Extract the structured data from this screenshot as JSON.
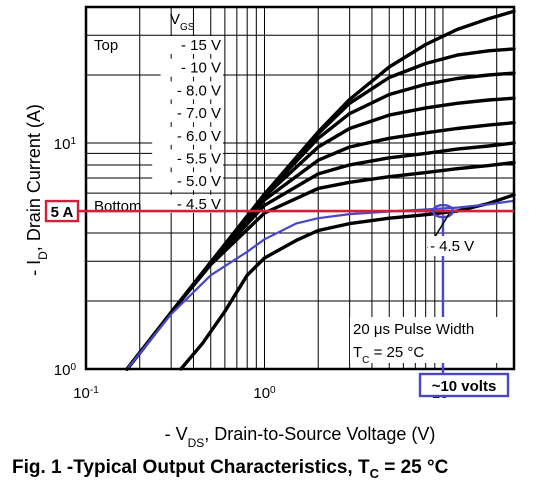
{
  "chart_data": {
    "type": "line",
    "title": "",
    "xlabel": "- V",
    "xlabel_sub": "DS",
    "xlabel_rest": ", Drain-to-Source Voltage (V)",
    "ylabel": "- I",
    "ylabel_sub": "D",
    "ylabel_rest": ", Drain Current (A)",
    "x_scale": "log",
    "y_scale": "log",
    "xlim": [
      0.1,
      25
    ],
    "ylim": [
      1,
      40
    ],
    "grid": true,
    "x_ticks": [
      {
        "value": 0.1,
        "base": "10",
        "exp": "-1"
      },
      {
        "value": 1,
        "base": "10",
        "exp": "0"
      },
      {
        "value": 10,
        "base": "10",
        "exp": "1"
      }
    ],
    "y_ticks": [
      {
        "value": 1,
        "base": "10",
        "exp": "0"
      },
      {
        "value": 10,
        "base": "10",
        "exp": "1"
      }
    ],
    "legend_header": "V",
    "legend_header_sub": "GS",
    "legend_top_label": "Top",
    "legend_bottom_label": "Bottom",
    "series": [
      {
        "name": "- 15 V",
        "x": [
          0.17,
          0.3,
          0.5,
          1,
          2,
          3,
          5,
          8,
          12,
          18,
          25
        ],
        "y": [
          1,
          1.78,
          2.97,
          5.94,
          11.2,
          15.6,
          21.7,
          27.3,
          31.8,
          35.5,
          38.3
        ]
      },
      {
        "name": "- 10 V",
        "x": [
          0.17,
          0.3,
          0.5,
          1,
          2,
          3,
          5,
          8,
          12,
          18,
          25
        ],
        "y": [
          1,
          1.78,
          2.97,
          5.94,
          11,
          15,
          19.5,
          22.5,
          24.5,
          25.6,
          26.1
        ]
      },
      {
        "name": "- 8.0 V",
        "x": [
          0.17,
          0.3,
          0.5,
          1,
          2,
          3,
          5,
          8,
          12,
          18,
          25
        ],
        "y": [
          1,
          1.78,
          2.97,
          5.9,
          10.5,
          13.5,
          16.4,
          18.2,
          19.3,
          20,
          20.4
        ]
      },
      {
        "name": "- 7.0 V",
        "x": [
          0.17,
          0.3,
          0.5,
          1,
          2,
          3,
          5,
          8,
          12,
          18,
          25
        ],
        "y": [
          1,
          1.78,
          2.97,
          5.8,
          9.6,
          11.6,
          13.3,
          14.3,
          15,
          15.5,
          15.8
        ]
      },
      {
        "name": "- 6.0 V",
        "x": [
          0.17,
          0.3,
          0.5,
          1,
          2,
          3,
          5,
          8,
          12,
          18,
          25
        ],
        "y": [
          1,
          1.78,
          2.97,
          5.6,
          8.4,
          9.6,
          10.5,
          11.1,
          11.6,
          12,
          12.3
        ]
      },
      {
        "name": "- 5.5 V",
        "x": [
          0.17,
          0.3,
          0.5,
          1,
          2,
          3,
          5,
          8,
          12,
          18,
          25
        ],
        "y": [
          1,
          1.78,
          2.94,
          5.3,
          7.3,
          8,
          8.6,
          9,
          9.4,
          9.7,
          10
        ]
      },
      {
        "name": "- 5.0 V",
        "x": [
          0.17,
          0.3,
          0.5,
          1,
          2,
          3,
          5,
          8,
          12,
          18,
          25
        ],
        "y": [
          1,
          1.78,
          2.9,
          4.9,
          6.3,
          6.7,
          7.1,
          7.4,
          7.7,
          7.95,
          8.2
        ]
      },
      {
        "name": "- 4.5 V",
        "x": [
          0.34,
          0.45,
          0.6,
          0.8,
          1,
          1.5,
          2,
          3,
          5,
          8,
          12,
          18,
          25
        ],
        "y": [
          1,
          1.3,
          1.8,
          2.6,
          3.1,
          3.7,
          4.1,
          4.4,
          4.65,
          4.82,
          5,
          5.4,
          5.9
        ]
      },
      {
        "name": "- 4.5 V",
        "x": [
          0.17,
          0.3,
          0.5,
          0.8,
          1,
          1.5,
          2,
          3,
          5,
          8,
          12,
          18,
          25
        ],
        "y": [
          1,
          1.75,
          2.6,
          3.3,
          3.75,
          4.4,
          4.65,
          4.85,
          4.98,
          5.08,
          5.18,
          5.35,
          5.55
        ],
        "color": "#4747c8"
      }
    ],
    "annotations": {
      "pulse_width": "20 μs Pulse Width",
      "tc_prefix": "T",
      "tc_sub": "C",
      "tc_rest": " = 25 °C",
      "curve_label": "- 4.5 V",
      "current_marker": {
        "label": "5 A",
        "value": 5,
        "color": "#d21f3c"
      },
      "voltage_marker": {
        "label": "~10 volts",
        "value": 10,
        "color": "#4747c8"
      }
    }
  },
  "caption": {
    "prefix": "Fig. 1 -Typical Output Characteristics, T",
    "sub": "C",
    "rest": " = 25 °C"
  }
}
